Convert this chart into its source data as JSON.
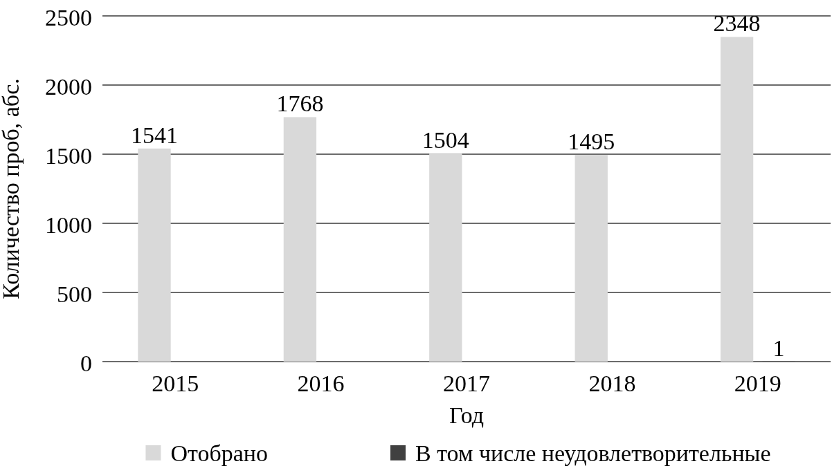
{
  "chart_data": {
    "type": "bar",
    "categories": [
      "2015",
      "2016",
      "2017",
      "2018",
      "2019"
    ],
    "xlabel": "Год",
    "ylabel": "Количество проб, абс.",
    "series": [
      {
        "name": "Отобрано",
        "color": "#d9d9d9",
        "values": [
          1541,
          1768,
          1504,
          1495,
          2348
        ],
        "value_labels": [
          "1541",
          "1768",
          "1504",
          "1495",
          "2348"
        ]
      },
      {
        "name": "В том числе неудовлетворительные",
        "color": "#404040",
        "values": [
          null,
          null,
          null,
          null,
          1
        ],
        "value_labels": [
          null,
          null,
          null,
          null,
          "1"
        ]
      }
    ],
    "ylim": [
      0,
      2500
    ],
    "yticks": [
      0,
      500,
      1000,
      1500,
      2000,
      2500
    ],
    "grid": "y",
    "legend": "bottom"
  }
}
